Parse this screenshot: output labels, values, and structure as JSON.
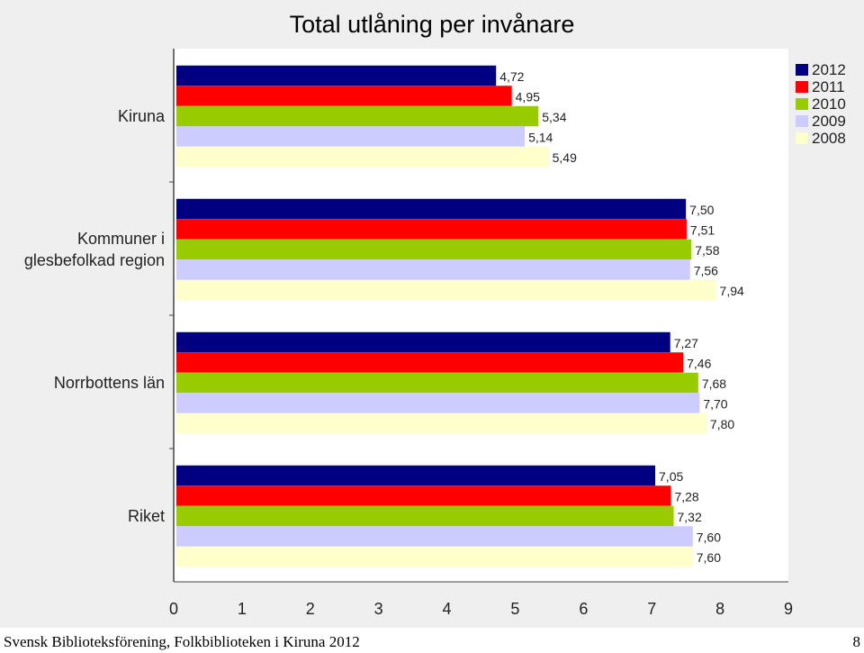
{
  "chart_data": {
    "type": "bar",
    "orientation": "horizontal",
    "title": "Total utlåning per invånare",
    "categories": [
      "Kiruna",
      "Kommuner i glesbefolkad region",
      "Norrbottens län",
      "Riket"
    ],
    "category_lines": [
      [
        "Kiruna"
      ],
      [
        "Kommuner i",
        "glesbefolkad region"
      ],
      [
        "Norrbottens län"
      ],
      [
        "Riket"
      ]
    ],
    "series": [
      {
        "name": "2012",
        "color": "#000080",
        "values": [
          4.72,
          7.5,
          7.27,
          7.05
        ],
        "labels": [
          "4,72",
          "7,50",
          "7,27",
          "7,05"
        ]
      },
      {
        "name": "2011",
        "color": "#ff0000",
        "values": [
          4.95,
          7.51,
          7.46,
          7.28
        ],
        "labels": [
          "4,95",
          "7,51",
          "7,46",
          "7,28"
        ]
      },
      {
        "name": "2010",
        "color": "#99cc00",
        "values": [
          5.34,
          7.58,
          7.68,
          7.32
        ],
        "labels": [
          "5,34",
          "7,58",
          "7,68",
          "7,32"
        ]
      },
      {
        "name": "2009",
        "color": "#ccccff",
        "values": [
          5.14,
          7.56,
          7.7,
          7.6
        ],
        "labels": [
          "5,14",
          "7,56",
          "7,70",
          "7,60"
        ]
      },
      {
        "name": "2008",
        "color": "#ffffcc",
        "values": [
          5.49,
          7.94,
          7.8,
          7.6
        ],
        "labels": [
          "5,49",
          "7,94",
          "7,80",
          "7,60"
        ]
      }
    ],
    "xlim": [
      0,
      9
    ],
    "xticks": [
      "0",
      "1",
      "2",
      "3",
      "4",
      "5",
      "6",
      "7",
      "8",
      "9"
    ],
    "grid": false,
    "legend_position": "top-right",
    "background": "#efefef",
    "plot_background": "#ffffff"
  },
  "footer": {
    "text": "Svensk Biblioteksförening, Folkbiblioteken i Kiruna 2012",
    "page_number": "8"
  }
}
